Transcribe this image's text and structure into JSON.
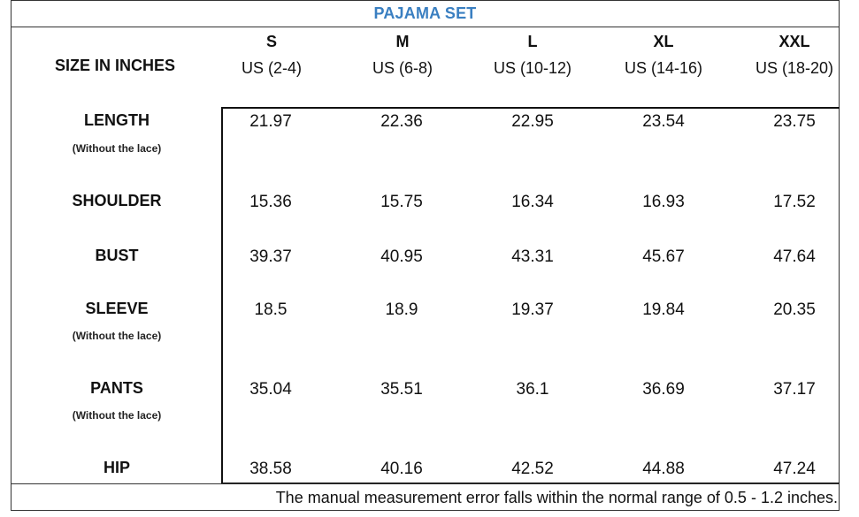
{
  "title": "PAJAMA SET",
  "size_label": "SIZE IN INCHES",
  "sizes": [
    {
      "name": "S",
      "range": "US (2-4)"
    },
    {
      "name": "M",
      "range": "US (6-8)"
    },
    {
      "name": "L",
      "range": "US (10-12)"
    },
    {
      "name": "XL",
      "range": "US (14-16)"
    },
    {
      "name": "XXL",
      "range": "US (18-20)"
    }
  ],
  "rows": [
    {
      "label": "LENGTH",
      "sub": "(Without the lace)",
      "values": [
        "21.97",
        "22.36",
        "22.95",
        "23.54",
        "23.75"
      ]
    },
    {
      "label": "SHOULDER",
      "sub": "",
      "values": [
        "15.36",
        "15.75",
        "16.34",
        "16.93",
        "17.52"
      ]
    },
    {
      "label": "BUST",
      "sub": "",
      "values": [
        "39.37",
        "40.95",
        "43.31",
        "45.67",
        "47.64"
      ]
    },
    {
      "label": "SLEEVE",
      "sub": "(Without the lace)",
      "values": [
        "18.5",
        "18.9",
        "19.37",
        "19.84",
        "20.35"
      ]
    },
    {
      "label": "PANTS",
      "sub": "(Without the lace)",
      "values": [
        "35.04",
        "35.51",
        "36.1",
        "36.69",
        "37.17"
      ]
    },
    {
      "label": "HIP",
      "sub": "",
      "values": [
        "38.58",
        "40.16",
        "42.52",
        "44.88",
        "47.24"
      ]
    }
  ],
  "footer": "The manual measurement error falls within the normal range of 0.5 - 1.2 inches."
}
